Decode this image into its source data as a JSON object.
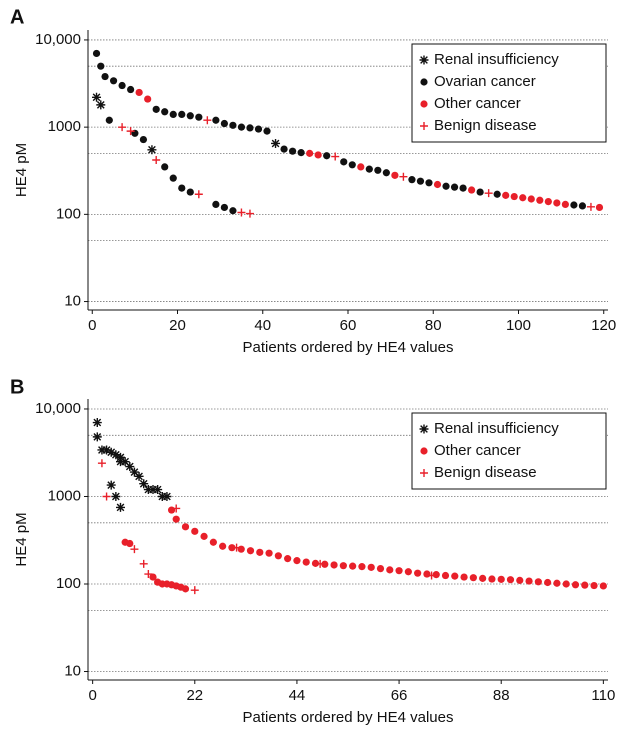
{
  "chart_data": [
    {
      "type": "scatter",
      "panel_label": "A",
      "x_label": "Patients ordered by HE4 values",
      "y_label": "HE4 pM",
      "log_scale": true,
      "grid": true,
      "legend": "upper-right",
      "minor_grid": [
        50,
        500,
        5000
      ],
      "xlim": [
        -1,
        121
      ],
      "xticks": [
        0,
        20,
        40,
        60,
        80,
        100,
        120
      ],
      "ylim": [
        8,
        13000
      ],
      "yticks": [
        10,
        100,
        1000,
        {
          "value": 10000,
          "label": "10,000"
        }
      ],
      "series": [
        {
          "name": "Renal insufficiency",
          "color": "#111111",
          "marker": "asterisk",
          "x": [
            1,
            2,
            14,
            43
          ],
          "values": [
            2200,
            1800,
            550,
            650
          ]
        },
        {
          "name": "Ovarian cancer",
          "color": "#111111",
          "marker": "dot",
          "x": [
            1,
            2,
            3,
            5,
            7,
            9,
            15,
            17,
            19,
            21,
            23,
            25,
            29,
            31,
            33,
            35,
            37,
            39,
            41,
            45,
            47,
            49,
            55,
            59,
            61,
            65,
            67,
            69,
            75,
            77,
            79,
            83,
            85,
            87,
            91,
            95,
            113,
            115,
            4,
            10,
            12,
            17,
            19,
            21,
            23,
            29,
            31,
            33
          ],
          "values": [
            7000,
            5000,
            3800,
            3400,
            3000,
            2700,
            1600,
            1500,
            1400,
            1400,
            1350,
            1300,
            1200,
            1100,
            1050,
            1000,
            980,
            950,
            900,
            560,
            530,
            510,
            470,
            400,
            370,
            330,
            320,
            300,
            250,
            240,
            230,
            210,
            205,
            200,
            180,
            170,
            128,
            125,
            1200,
            850,
            720,
            350,
            260,
            200,
            180,
            130,
            120,
            110
          ]
        },
        {
          "name": "Other cancer",
          "color": "#e8202a",
          "marker": "dot",
          "x": [
            11,
            13,
            51,
            53,
            63,
            71,
            81,
            89,
            97,
            99,
            101,
            103,
            105,
            107,
            109,
            111,
            119
          ],
          "values": [
            2500,
            2100,
            500,
            480,
            350,
            280,
            220,
            190,
            165,
            160,
            155,
            150,
            145,
            140,
            135,
            130,
            120
          ]
        },
        {
          "name": "Benign disease",
          "color": "#e8202a",
          "marker": "plus",
          "x": [
            7,
            9,
            15,
            25,
            27,
            35,
            37,
            57,
            73,
            93,
            117
          ],
          "values": [
            1000,
            900,
            420,
            170,
            1200,
            105,
            102,
            460,
            270,
            175,
            122
          ]
        }
      ]
    },
    {
      "type": "scatter",
      "panel_label": "B",
      "x_label": "Patients ordered by HE4 values",
      "y_label": "HE4 pM",
      "log_scale": true,
      "grid": true,
      "legend": "upper-right",
      "minor_grid": [
        50,
        500,
        5000
      ],
      "xlim": [
        -1,
        111
      ],
      "xticks": [
        0,
        22,
        44,
        66,
        88,
        110
      ],
      "ylim": [
        8,
        13000
      ],
      "yticks": [
        10,
        100,
        1000,
        {
          "value": 10000,
          "label": "10,000"
        }
      ],
      "series": [
        {
          "name": "Renal insufficiency",
          "color": "#111111",
          "marker": "asterisk",
          "x": [
            1,
            1,
            2,
            3,
            4,
            5,
            6,
            6,
            7,
            8,
            9,
            10,
            11,
            12,
            13,
            14,
            15,
            16,
            4,
            5,
            6
          ],
          "values": [
            7000,
            4800,
            3400,
            3400,
            3200,
            3000,
            2800,
            2500,
            2500,
            2200,
            1900,
            1700,
            1400,
            1200,
            1200,
            1200,
            1000,
            1000,
            1350,
            1000,
            750
          ]
        },
        {
          "name": "Other cancer",
          "color": "#e8202a",
          "marker": "dot",
          "x": [
            17,
            18,
            20,
            22,
            24,
            26,
            28,
            30,
            32,
            34,
            36,
            38,
            40,
            42,
            44,
            46,
            48,
            50,
            52,
            54,
            56,
            58,
            60,
            62,
            64,
            66,
            68,
            70,
            72,
            74,
            76,
            78,
            80,
            82,
            84,
            86,
            88,
            90,
            92,
            94,
            96,
            98,
            100,
            102,
            104,
            106,
            108,
            110,
            7,
            8,
            13,
            14,
            15,
            16,
            17,
            18,
            19,
            20
          ],
          "values": [
            700,
            550,
            450,
            400,
            350,
            300,
            270,
            260,
            250,
            240,
            230,
            225,
            210,
            195,
            185,
            178,
            172,
            168,
            165,
            162,
            160,
            158,
            155,
            150,
            145,
            142,
            138,
            133,
            130,
            128,
            125,
            123,
            120,
            118,
            116,
            114,
            113,
            112,
            110,
            108,
            106,
            104,
            102,
            100,
            98,
            97,
            96,
            95,
            300,
            290,
            120,
            105,
            100,
            100,
            98,
            95,
            92,
            88
          ]
        },
        {
          "name": "Benign disease",
          "color": "#e8202a",
          "marker": "plus",
          "x": [
            2,
            3,
            9,
            11,
            12,
            18,
            22,
            31,
            49,
            73
          ],
          "values": [
            2400,
            1000,
            250,
            170,
            130,
            730,
            85,
            260,
            170,
            125
          ]
        }
      ]
    }
  ]
}
